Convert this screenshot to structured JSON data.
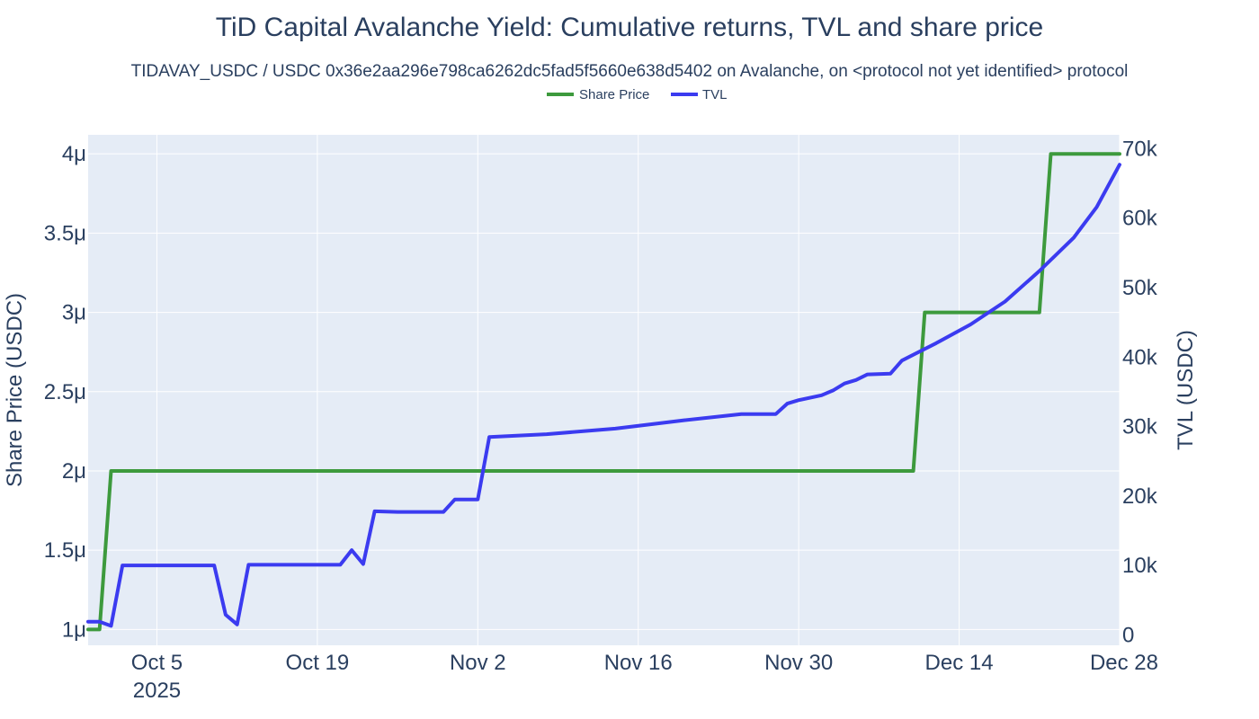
{
  "chart_data": {
    "type": "line",
    "title": "TiD Capital Avalanche Yield: Cumulative returns, TVL and share price",
    "subtitle": "TIDAVAY_USDC / USDC 0x36e2aa296e798ca6262dc5fad5f5660e638d5402 on Avalanche, on <protocol not yet identified> protocol",
    "legend": {
      "placement": "top-center",
      "orientation": "horizontal"
    },
    "grid": true,
    "x_axis": {
      "type": "date",
      "range": [
        "2025-09-29",
        "2025-12-28"
      ],
      "ticks": [
        {
          "date": "2025-10-05",
          "label": "Oct 5",
          "sublabel": "2025"
        },
        {
          "date": "2025-10-19",
          "label": "Oct 19",
          "sublabel": ""
        },
        {
          "date": "2025-11-02",
          "label": "Nov 2",
          "sublabel": ""
        },
        {
          "date": "2025-11-16",
          "label": "Nov 16",
          "sublabel": ""
        },
        {
          "date": "2025-11-30",
          "label": "Nov 30",
          "sublabel": ""
        },
        {
          "date": "2025-12-14",
          "label": "Dec 14",
          "sublabel": ""
        },
        {
          "date": "2025-12-28",
          "label": "Dec 28",
          "sublabel": ""
        }
      ]
    },
    "y_axis_left": {
      "label": "Share Price (USDC)",
      "range": [
        0.9,
        4.12
      ],
      "ticks": [
        {
          "value": 1.0,
          "label": "1μ"
        },
        {
          "value": 1.5,
          "label": "1.5μ"
        },
        {
          "value": 2.0,
          "label": "2μ"
        },
        {
          "value": 2.5,
          "label": "2.5μ"
        },
        {
          "value": 3.0,
          "label": "3μ"
        },
        {
          "value": 3.5,
          "label": "3.5μ"
        },
        {
          "value": 4.0,
          "label": "4μ"
        }
      ]
    },
    "y_axis_right": {
      "label": "TVL (USDC)",
      "range": [
        -1500,
        72000
      ],
      "ticks": [
        {
          "value": 0,
          "label": "0"
        },
        {
          "value": 10000,
          "label": "10k"
        },
        {
          "value": 20000,
          "label": "20k"
        },
        {
          "value": 30000,
          "label": "30k"
        },
        {
          "value": 40000,
          "label": "40k"
        },
        {
          "value": 50000,
          "label": "50k"
        },
        {
          "value": 60000,
          "label": "60k"
        },
        {
          "value": 70000,
          "label": "70k"
        }
      ]
    },
    "series": [
      {
        "name": "Share Price",
        "axis": "left",
        "color": "#3d9a3d",
        "points": [
          [
            "2025-09-29",
            1.0
          ],
          [
            "2025-09-30",
            1.0
          ],
          [
            "2025-10-01",
            2.0
          ],
          [
            "2025-12-10",
            2.0
          ],
          [
            "2025-12-11",
            3.0
          ],
          [
            "2025-12-21",
            3.0
          ],
          [
            "2025-12-22",
            4.0
          ],
          [
            "2025-12-28",
            4.0
          ]
        ]
      },
      {
        "name": "TVL",
        "axis": "right",
        "color": "#3b3bf0",
        "points": [
          [
            "2025-09-29",
            1900
          ],
          [
            "2025-09-30",
            1900
          ],
          [
            "2025-10-01",
            1300
          ],
          [
            "2025-10-02",
            10000
          ],
          [
            "2025-10-10",
            10000
          ],
          [
            "2025-10-11",
            2900
          ],
          [
            "2025-10-12",
            1500
          ],
          [
            "2025-10-13",
            10100
          ],
          [
            "2025-10-21",
            10100
          ],
          [
            "2025-10-22",
            12200
          ],
          [
            "2025-10-23",
            10200
          ],
          [
            "2025-10-24",
            17800
          ],
          [
            "2025-10-26",
            17700
          ],
          [
            "2025-10-30",
            17700
          ],
          [
            "2025-10-31",
            19500
          ],
          [
            "2025-11-02",
            19500
          ],
          [
            "2025-11-03",
            28500
          ],
          [
            "2025-11-08",
            28900
          ],
          [
            "2025-11-14",
            29700
          ],
          [
            "2025-11-20",
            30900
          ],
          [
            "2025-11-25",
            31800
          ],
          [
            "2025-11-28",
            31800
          ],
          [
            "2025-11-29",
            33300
          ],
          [
            "2025-11-30",
            33800
          ],
          [
            "2025-12-02",
            34500
          ],
          [
            "2025-12-03",
            35200
          ],
          [
            "2025-12-04",
            36200
          ],
          [
            "2025-12-05",
            36700
          ],
          [
            "2025-12-06",
            37500
          ],
          [
            "2025-12-08",
            37600
          ],
          [
            "2025-12-09",
            39500
          ],
          [
            "2025-12-12",
            42000
          ],
          [
            "2025-12-15",
            44700
          ],
          [
            "2025-12-18",
            48000
          ],
          [
            "2025-12-21",
            52400
          ],
          [
            "2025-12-24",
            57200
          ],
          [
            "2025-12-26",
            61600
          ],
          [
            "2025-12-28",
            67700
          ]
        ]
      }
    ]
  }
}
